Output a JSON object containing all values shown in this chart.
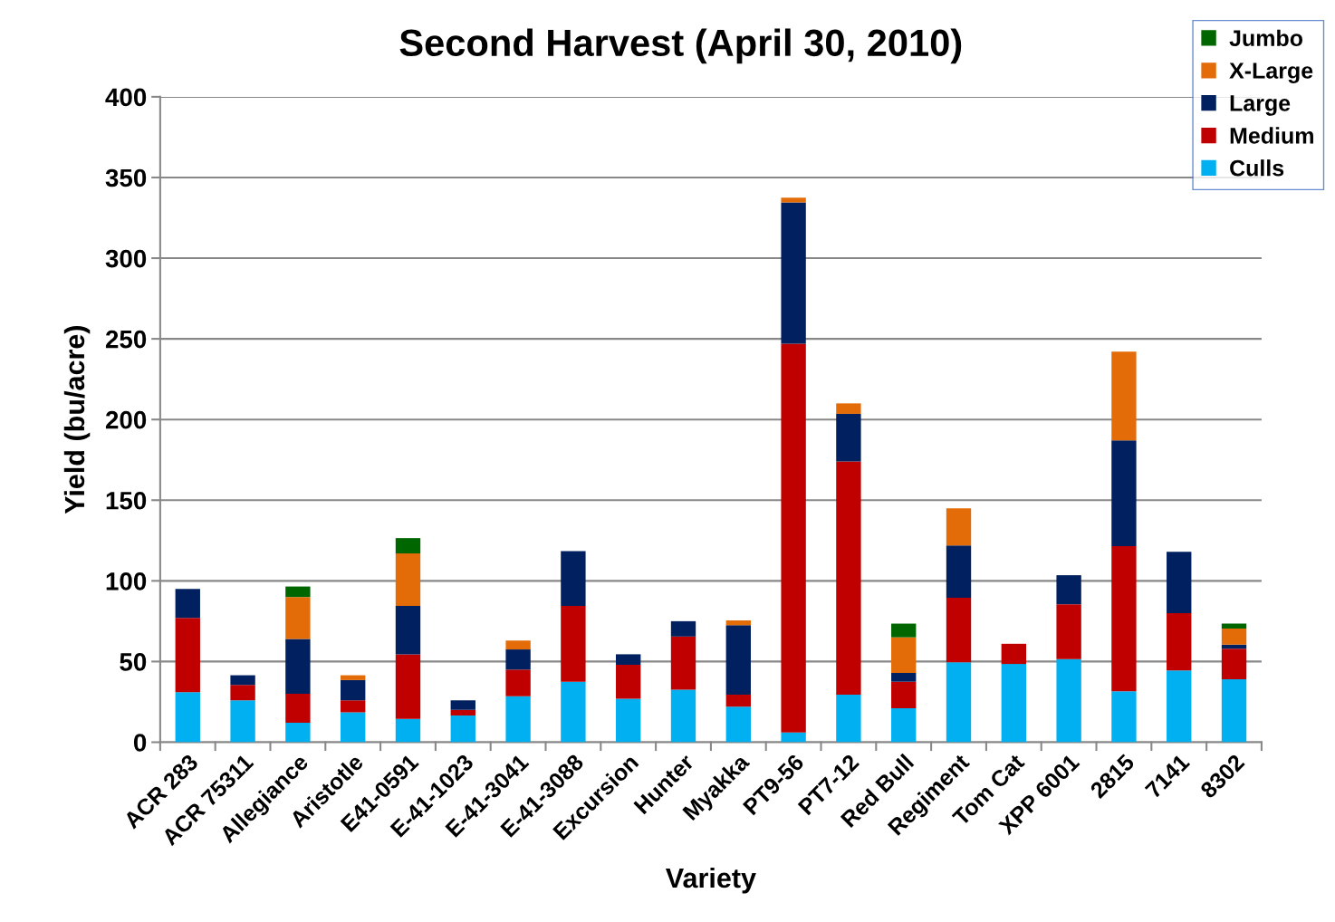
{
  "chart_data": {
    "type": "bar",
    "stacked": true,
    "title": "Second Harvest (April 30, 2010)",
    "xlabel": "Variety",
    "ylabel": "Yield (bu/acre)",
    "categories": [
      "ACR 283",
      "ACR 75311",
      "Allegiance",
      "Aristotle",
      "E41-0591",
      "E-41-1023",
      "E-41-3041",
      "E-41-3088",
      "Excursion",
      "Hunter",
      "Myakka",
      "PT9-56",
      "PT7-12",
      "Red Bull",
      "Regiment",
      "Tom Cat",
      "XPP 6001",
      "2815",
      "7141",
      "8302"
    ],
    "series": [
      {
        "name": "Culls",
        "color": "#00b0f0",
        "values": [
          31,
          26,
          12,
          18.5,
          14.5,
          16.5,
          28.5,
          37.5,
          27,
          32.5,
          22,
          6,
          29.5,
          21,
          49.5,
          48.5,
          51.5,
          31.5,
          44.5,
          39
        ]
      },
      {
        "name": "Medium",
        "color": "#c00000",
        "values": [
          46,
          9.5,
          18,
          7.5,
          40,
          3.5,
          16.5,
          47,
          21,
          33,
          7.5,
          241,
          144.5,
          16.5,
          40,
          12.5,
          34,
          90,
          35.5,
          19
        ]
      },
      {
        "name": "Large",
        "color": "#002060",
        "values": [
          18,
          6,
          34,
          12.5,
          30,
          6,
          12.5,
          34,
          6.5,
          9.5,
          43,
          87.5,
          29.5,
          5.5,
          32.5,
          0,
          18,
          65.5,
          38,
          2.5
        ]
      },
      {
        "name": "X-Large",
        "color": "#e36c09",
        "values": [
          0,
          0,
          26,
          3,
          32.5,
          0,
          5.5,
          0,
          0,
          0,
          3,
          3,
          6.5,
          22,
          23,
          0,
          0,
          55,
          0,
          10
        ]
      },
      {
        "name": "Jumbo",
        "color": "#006600",
        "values": [
          0,
          0,
          6.5,
          0,
          9.5,
          0,
          0,
          0,
          0,
          0,
          0,
          0,
          0,
          8.5,
          0,
          0,
          0,
          0,
          0,
          3
        ]
      }
    ],
    "ylim": [
      0,
      400
    ],
    "yticks": [
      0,
      50,
      100,
      150,
      200,
      250,
      300,
      350,
      400
    ],
    "grid": "y",
    "legend": "top right"
  }
}
